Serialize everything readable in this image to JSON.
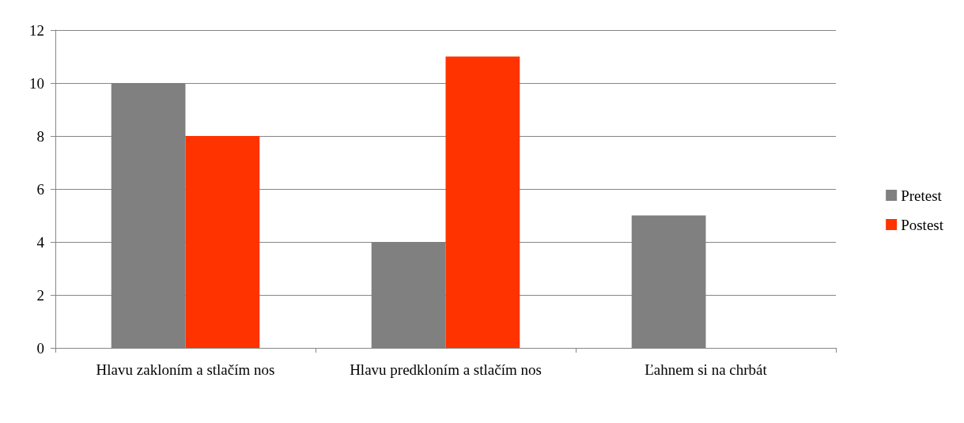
{
  "chart_data": {
    "type": "bar",
    "categories": [
      "Hlavu zakloním a stlačím nos",
      "Hlavu predkloním a stlačím nos",
      "Ľahnem si na chrbát"
    ],
    "series": [
      {
        "name": "Pretest",
        "color": "#808080",
        "values": [
          10,
          4,
          5
        ]
      },
      {
        "name": "Postest",
        "color": "#ff3300",
        "values": [
          8,
          11,
          0
        ]
      }
    ],
    "ylim": [
      0,
      12
    ],
    "yticks": [
      0,
      2,
      4,
      6,
      8,
      10,
      12
    ],
    "grid": "y",
    "legend": "right"
  }
}
